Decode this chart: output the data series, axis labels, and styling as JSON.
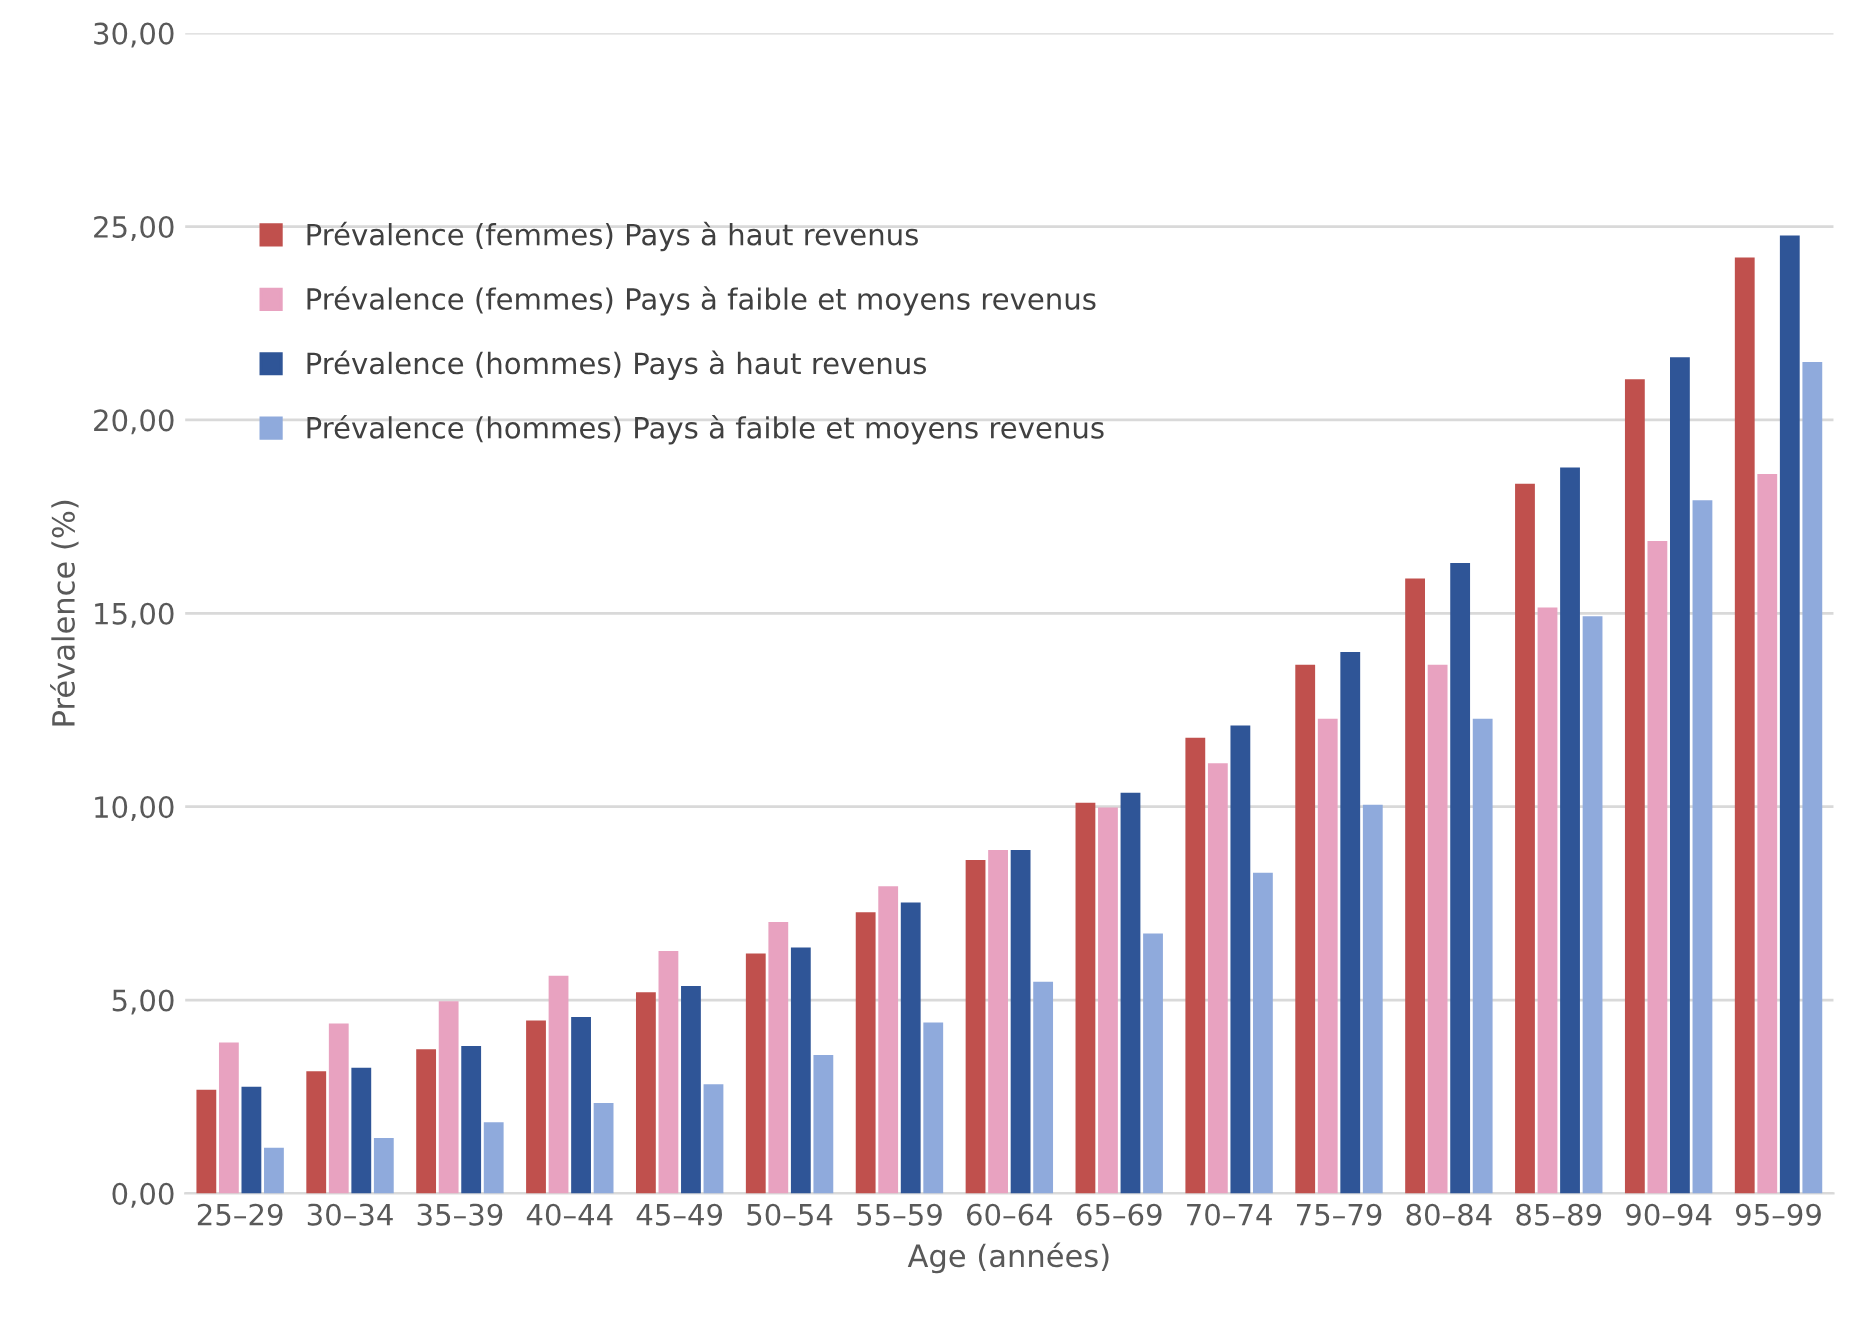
{
  "chart_data": {
    "type": "bar",
    "xlabel": "Age (années)",
    "ylabel": "Prévalence (%)",
    "categories": [
      "25–29",
      "30–34",
      "35–39",
      "40–44",
      "45–49",
      "50–54",
      "55–59",
      "60–64",
      "65–69",
      "70–74",
      "75–79",
      "80–84",
      "85–89",
      "90–94",
      "95–99"
    ],
    "series": [
      {
        "name": "Prévalence (femmes) Pays à haut revenus",
        "color": "#c0504d",
        "values": [
          2.68,
          3.16,
          3.73,
          4.47,
          5.2,
          6.2,
          7.27,
          8.62,
          10.1,
          11.78,
          13.67,
          15.9,
          18.35,
          21.05,
          24.2
        ]
      },
      {
        "name": "Prévalence (femmes) Pays à faible et moyens revenus",
        "color": "#e8a2c0",
        "values": [
          3.9,
          4.39,
          4.97,
          5.63,
          6.27,
          7.02,
          7.94,
          8.88,
          9.98,
          11.12,
          12.27,
          13.67,
          15.15,
          16.87,
          18.6
        ]
      },
      {
        "name": "Prévalence (hommes) Pays à haut revenus",
        "color": "#2f5597",
        "values": [
          2.76,
          3.25,
          3.81,
          4.56,
          5.36,
          6.36,
          7.52,
          8.88,
          10.36,
          12.1,
          14.0,
          16.3,
          18.77,
          21.62,
          24.77
        ]
      },
      {
        "name": "Prévalence (hommes) Pays à faible et moyens revenus",
        "color": "#8faadc",
        "values": [
          1.18,
          1.43,
          1.84,
          2.34,
          2.82,
          3.58,
          4.42,
          5.47,
          6.72,
          8.29,
          10.05,
          12.27,
          14.92,
          17.92,
          21.5
        ]
      }
    ],
    "ylim": [
      0,
      30
    ],
    "yticks": [
      {
        "value": 0,
        "label": "0,00"
      },
      {
        "value": 5,
        "label": "5,00"
      },
      {
        "value": 10,
        "label": "10,00"
      },
      {
        "value": 15,
        "label": "15,00"
      },
      {
        "value": 20,
        "label": "20,00"
      },
      {
        "value": 25,
        "label": "25,00"
      },
      {
        "value": 30,
        "label": "30,00"
      }
    ],
    "grid": "y",
    "legend": "top left"
  }
}
